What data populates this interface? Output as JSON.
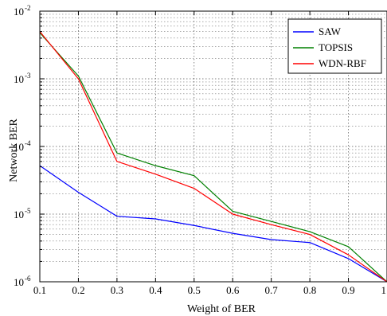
{
  "chart_data": {
    "type": "line",
    "xlabel": "Weight of BER",
    "ylabel": "Network BER",
    "xlim": [
      0.1,
      1.0
    ],
    "ylim": [
      1e-06,
      0.01
    ],
    "yscale": "log",
    "grid": true,
    "legend_position": "top-right",
    "x_ticks": [
      "0.1",
      "0.2",
      "0.3",
      "0.4",
      "0.5",
      "0.6",
      "0.7",
      "0.8",
      "0.9",
      "1"
    ],
    "y_ticks": [
      {
        "base": "10",
        "exp": "-6"
      },
      {
        "base": "10",
        "exp": "-5"
      },
      {
        "base": "10",
        "exp": "-4"
      },
      {
        "base": "10",
        "exp": "-3"
      },
      {
        "base": "10",
        "exp": "-2"
      }
    ],
    "x": [
      0.1,
      0.2,
      0.3,
      0.4,
      0.5,
      0.6,
      0.7,
      0.8,
      0.9,
      1.0
    ],
    "series": [
      {
        "name": "SAW",
        "color": "#0000ff",
        "values": [
          5.2e-05,
          2.1e-05,
          9.3e-06,
          8.5e-06,
          6.8e-06,
          5.2e-06,
          4.2e-06,
          3.8e-06,
          2.2e-06,
          1e-06
        ]
      },
      {
        "name": "TOPSIS",
        "color": "#008000",
        "values": [
          0.0048,
          0.0011,
          8e-05,
          5.2e-05,
          3.7e-05,
          1.1e-05,
          7.8e-06,
          5.5e-06,
          3.3e-06,
          1e-06
        ]
      },
      {
        "name": "WDN-RBF",
        "color": "#ff0000",
        "values": [
          0.005,
          0.001,
          6e-05,
          3.9e-05,
          2.4e-05,
          1e-05,
          7e-06,
          5e-06,
          2.5e-06,
          1e-06
        ]
      }
    ]
  }
}
